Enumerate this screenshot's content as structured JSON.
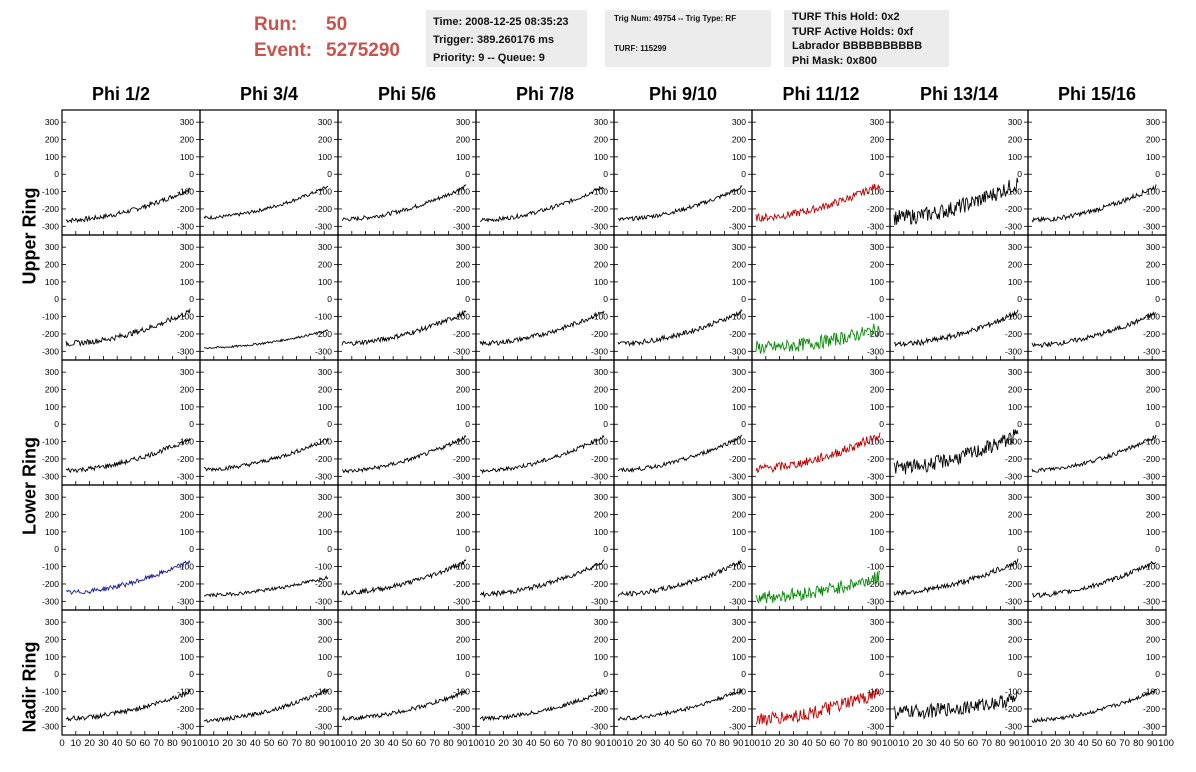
{
  "header": {
    "run_label": "Run:",
    "run_value": "50",
    "event_label": "Event:",
    "event_value": "5275290"
  },
  "info1": {
    "time": "Time: 2008-12-25 08:35:23",
    "trigger": "Trigger: 389.260176 ms",
    "priority": "Priority: 9 -- Queue: 9"
  },
  "info2": {
    "trig": "Trig Num: 49754 -- Trig Type: RF",
    "turf": "TURF: 115299"
  },
  "info3": {
    "hold": "TURF This Hold: 0x2",
    "active": "TURF Active Holds: 0xf",
    "labrador": "Labrador BBBBBBBBBB",
    "phimask": "Phi Mask: 0x800"
  },
  "columns": [
    "Phi 1/2",
    "Phi 3/4",
    "Phi 5/6",
    "Phi 7/8",
    "Phi 9/10",
    "Phi 11/12",
    "Phi 13/14",
    "Phi 15/16"
  ],
  "ring_labels": {
    "upper": "Upper Ring",
    "lower": "Lower Ring",
    "nadir": "Nadir Ring"
  },
  "colors": {
    "title": "#c9524d",
    "trace": "#000000",
    "red": "#c00000",
    "green": "#0a8a0a",
    "blue": "#1a1a9a",
    "box": "#ececec"
  },
  "chart_data": {
    "type": "line",
    "grid": false,
    "legend": "none",
    "rows": 5,
    "cols": 8,
    "ylim": [
      -350,
      370
    ],
    "yticks": [
      300,
      200,
      100,
      0,
      -100,
      -200,
      -300
    ],
    "xlim": [
      0,
      100
    ],
    "xticks": [
      0,
      10,
      20,
      30,
      40,
      50,
      60,
      70,
      80,
      90,
      100
    ],
    "xtick_labels": [
      "0",
      "10",
      "20",
      "30",
      "40",
      "50",
      "60",
      "70",
      "80",
      "90",
      "100"
    ],
    "panels": [
      [
        {
          "start": -265,
          "end": -85,
          "noise": 14,
          "color": "black"
        },
        {
          "start": -250,
          "end": -70,
          "noise": 10,
          "color": "black"
        },
        {
          "start": -260,
          "end": -70,
          "noise": 12,
          "color": "black"
        },
        {
          "start": -265,
          "end": -70,
          "noise": 12,
          "color": "black"
        },
        {
          "start": -260,
          "end": -75,
          "noise": 12,
          "color": "black"
        },
        {
          "start": -250,
          "end": -60,
          "noise": 22,
          "color": "red"
        },
        {
          "start": -250,
          "end": -50,
          "noise": 45,
          "color": "black"
        },
        {
          "start": -265,
          "end": -70,
          "noise": 14,
          "color": "black"
        }
      ],
      [
        {
          "start": -255,
          "end": -70,
          "noise": 16,
          "color": "black"
        },
        {
          "start": -280,
          "end": -180,
          "noise": 6,
          "color": "black"
        },
        {
          "start": -255,
          "end": -75,
          "noise": 14,
          "color": "black"
        },
        {
          "start": -255,
          "end": -70,
          "noise": 14,
          "color": "black"
        },
        {
          "start": -255,
          "end": -70,
          "noise": 14,
          "color": "black"
        },
        {
          "start": -280,
          "end": -170,
          "noise": 38,
          "color": "green"
        },
        {
          "start": -260,
          "end": -75,
          "noise": 16,
          "color": "black"
        },
        {
          "start": -265,
          "end": -80,
          "noise": 14,
          "color": "black"
        }
      ],
      [
        {
          "start": -265,
          "end": -85,
          "noise": 14,
          "color": "black"
        },
        {
          "start": -260,
          "end": -85,
          "noise": 12,
          "color": "black"
        },
        {
          "start": -270,
          "end": -70,
          "noise": 12,
          "color": "black"
        },
        {
          "start": -270,
          "end": -70,
          "noise": 12,
          "color": "black"
        },
        {
          "start": -265,
          "end": -70,
          "noise": 12,
          "color": "black"
        },
        {
          "start": -255,
          "end": -60,
          "noise": 26,
          "color": "red"
        },
        {
          "start": -250,
          "end": -60,
          "noise": 42,
          "color": "black"
        },
        {
          "start": -265,
          "end": -70,
          "noise": 12,
          "color": "black"
        }
      ],
      [
        {
          "start": -250,
          "end": -70,
          "noise": 14,
          "color": "blue"
        },
        {
          "start": -265,
          "end": -160,
          "noise": 10,
          "color": "black"
        },
        {
          "start": -250,
          "end": -70,
          "noise": 14,
          "color": "black"
        },
        {
          "start": -260,
          "end": -70,
          "noise": 14,
          "color": "black"
        },
        {
          "start": -260,
          "end": -70,
          "noise": 14,
          "color": "black"
        },
        {
          "start": -275,
          "end": -160,
          "noise": 38,
          "color": "green"
        },
        {
          "start": -250,
          "end": -70,
          "noise": 16,
          "color": "black"
        },
        {
          "start": -265,
          "end": -70,
          "noise": 14,
          "color": "black"
        }
      ],
      [
        {
          "start": -255,
          "end": -100,
          "noise": 14,
          "color": "black"
        },
        {
          "start": -265,
          "end": -90,
          "noise": 12,
          "color": "black"
        },
        {
          "start": -255,
          "end": -100,
          "noise": 12,
          "color": "black"
        },
        {
          "start": -255,
          "end": -100,
          "noise": 12,
          "color": "black"
        },
        {
          "start": -255,
          "end": -90,
          "noise": 12,
          "color": "black"
        },
        {
          "start": -260,
          "end": -100,
          "noise": 40,
          "color": "red"
        },
        {
          "start": -220,
          "end": -140,
          "noise": 40,
          "color": "black"
        },
        {
          "start": -265,
          "end": -90,
          "noise": 12,
          "color": "black"
        }
      ]
    ]
  }
}
